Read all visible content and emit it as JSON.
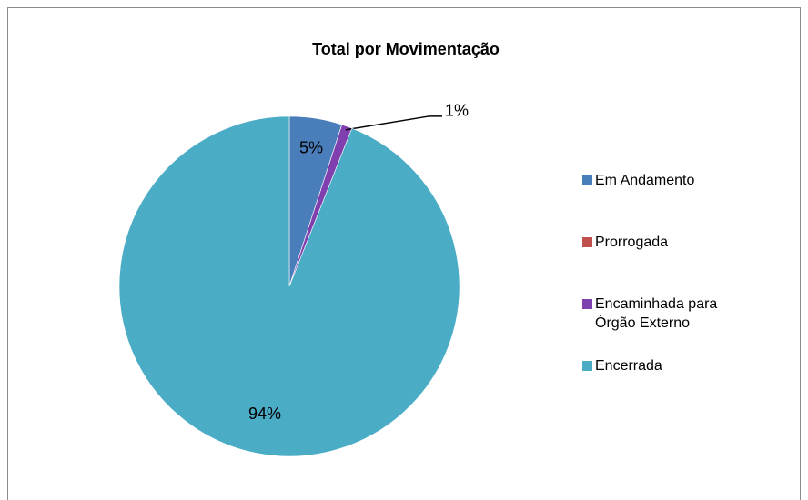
{
  "chart_data": {
    "type": "pie",
    "title": "Total por Movimentação",
    "categories": [
      "Em Andamento",
      "Prorrogada",
      "Encaminhada para Órgão Externo",
      "Encerrada"
    ],
    "values": [
      5,
      0,
      1,
      94
    ],
    "value_labels": [
      "5%",
      null,
      "1%",
      "94%"
    ],
    "colors": [
      "#4a7ebb",
      "#c0504d",
      "#7f3fae",
      "#4bacc6"
    ],
    "legend": "right"
  }
}
